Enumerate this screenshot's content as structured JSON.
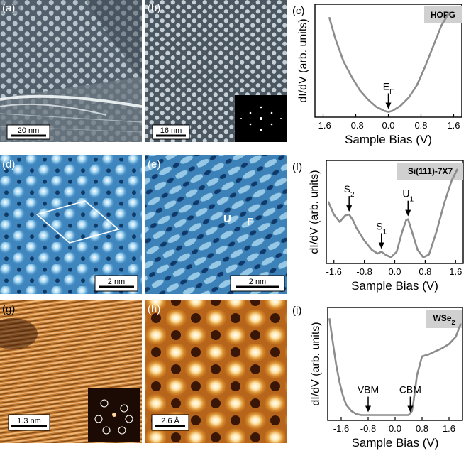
{
  "figure": {
    "panel_labels": [
      "(a)",
      "(b)",
      "(c)",
      "(d)",
      "(e)",
      "(f)",
      "(g)",
      "(h)",
      "(i)"
    ],
    "scale_bars": {
      "a": "20 nm",
      "b": "16 nm",
      "d": "2 nm",
      "e": "2 nm",
      "g": "1.3 nm",
      "h": "2.6 Å"
    },
    "annotations_e": {
      "U": "U",
      "F": "F"
    }
  },
  "chart_data": [
    {
      "type": "line",
      "panel": "c",
      "sample_label": "HOPG",
      "xlabel": "Sample Bias (V)",
      "ylabel": "dI/dV (arb. units)",
      "xlim": [
        -1.8,
        1.8
      ],
      "ylim": [
        0,
        1
      ],
      "xticks": [
        "-1.6",
        "-0.8",
        "0.0",
        "0.8",
        "1.6"
      ],
      "xtick_values": [
        -1.6,
        -0.8,
        0.0,
        0.8,
        1.6
      ],
      "series": [
        {
          "name": "HOPG",
          "x": [
            -1.45,
            -1.3,
            -1.1,
            -0.9,
            -0.7,
            -0.5,
            -0.3,
            -0.1,
            0.0,
            0.1,
            0.3,
            0.5,
            0.7,
            0.9,
            1.1,
            1.3,
            1.5
          ],
          "y": [
            0.93,
            0.72,
            0.5,
            0.35,
            0.22,
            0.13,
            0.06,
            0.02,
            0.01,
            0.02,
            0.07,
            0.15,
            0.27,
            0.45,
            0.65,
            0.85,
            0.98
          ]
        }
      ],
      "annotations": [
        {
          "text": "E",
          "sub": "F",
          "x": 0.0,
          "y": 0.01
        }
      ]
    },
    {
      "type": "line",
      "panel": "f",
      "sample_label": "Si(111)-7X7",
      "xlabel": "Sample Bias (V)",
      "ylabel": "dI/dV (arb. units)",
      "xlim": [
        -1.8,
        1.8
      ],
      "ylim": [
        0,
        1
      ],
      "xticks": [
        "-1.6",
        "-0.8",
        "0.0",
        "0.8",
        "1.6"
      ],
      "xtick_values": [
        -1.6,
        -0.8,
        0.0,
        0.8,
        1.6
      ],
      "series": [
        {
          "name": "Si(111)-7X7",
          "x": [
            -1.75,
            -1.6,
            -1.45,
            -1.3,
            -1.2,
            -1.1,
            -1.0,
            -0.8,
            -0.6,
            -0.45,
            -0.35,
            -0.25,
            -0.1,
            0.05,
            0.2,
            0.3,
            0.35,
            0.45,
            0.6,
            0.75,
            0.9,
            1.1,
            1.3,
            1.5,
            1.65
          ],
          "y": [
            0.62,
            0.48,
            0.4,
            0.47,
            0.48,
            0.42,
            0.33,
            0.2,
            0.1,
            0.06,
            0.08,
            0.05,
            0.02,
            0.08,
            0.3,
            0.42,
            0.43,
            0.3,
            0.1,
            0.02,
            0.05,
            0.3,
            0.6,
            0.85,
            0.97
          ]
        }
      ],
      "annotations": [
        {
          "text": "S",
          "sub": "2",
          "x": -1.2,
          "y": 0.48
        },
        {
          "text": "S",
          "sub": "1",
          "x": -0.35,
          "y": 0.08
        },
        {
          "text": "U",
          "sub": "1",
          "x": 0.35,
          "y": 0.43
        }
      ]
    },
    {
      "type": "line",
      "panel": "i",
      "sample_label": "WSe",
      "sample_label_sub": "2",
      "xlabel": "Sample Bias (V)",
      "ylabel": "dI/dV (arb. units)",
      "xlim": [
        -2.0,
        2.0
      ],
      "ylim": [
        0,
        1
      ],
      "xticks": [
        "-1.6",
        "-0.8",
        "0.0",
        "0.8",
        "1.6"
      ],
      "xtick_values": [
        -1.6,
        -0.8,
        0.0,
        0.8,
        1.6
      ],
      "series": [
        {
          "name": "WSe2",
          "x": [
            -1.95,
            -1.85,
            -1.75,
            -1.65,
            -1.55,
            -1.45,
            -1.3,
            -1.15,
            -1.0,
            -0.8,
            -0.4,
            0.0,
            0.4,
            0.5,
            0.55,
            0.65,
            0.8,
            1.0,
            1.2,
            1.4,
            1.6,
            1.8,
            1.95
          ],
          "y": [
            0.95,
            0.72,
            0.5,
            0.33,
            0.2,
            0.11,
            0.05,
            0.02,
            0.01,
            0.01,
            0.01,
            0.01,
            0.01,
            0.05,
            0.15,
            0.4,
            0.58,
            0.6,
            0.63,
            0.66,
            0.7,
            0.77,
            0.9
          ]
        }
      ],
      "annotations": [
        {
          "text": "VBM",
          "x": -0.8,
          "y": 0.01
        },
        {
          "text": "CBM",
          "x": 0.45,
          "y": 0.01
        }
      ]
    }
  ]
}
